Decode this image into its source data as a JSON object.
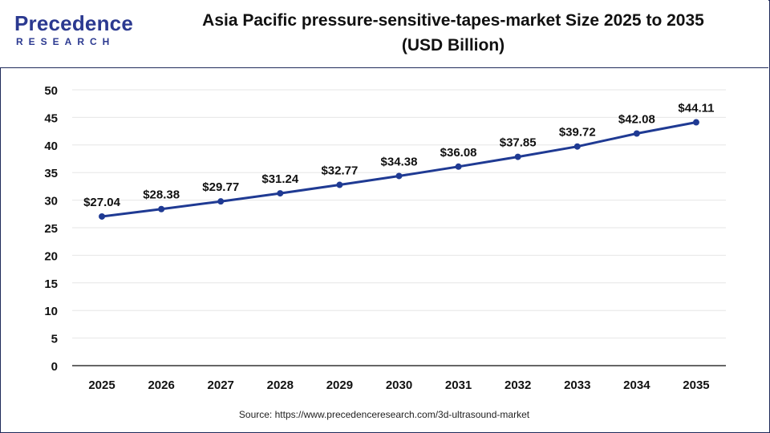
{
  "brand": {
    "name": "Precedence",
    "sub": "RESEARCH"
  },
  "header": {
    "title_line1": "Asia Pacific pressure-sensitive-tapes-market Size 2025 to 2035",
    "title_line2": "(USD Billion)"
  },
  "source": "Source: https://www.precedenceresearch.com/3d-ultrasound-market",
  "colors": {
    "line": "#1f3a93",
    "grid": "#e6e6e6",
    "border": "#1f2a5a",
    "brand": "#2b3990"
  },
  "chart_data": {
    "type": "line",
    "title": "Asia Pacific pressure-sensitive-tapes-market Size 2025 to 2035 (USD Billion)",
    "categories": [
      "2025",
      "2026",
      "2027",
      "2028",
      "2029",
      "2030",
      "2031",
      "2032",
      "2033",
      "2034",
      "2035"
    ],
    "values": [
      27.04,
      28.38,
      29.77,
      31.24,
      32.77,
      34.38,
      36.08,
      37.85,
      39.72,
      42.08,
      44.11
    ],
    "data_labels": [
      "$27.04",
      "$28.38",
      "$29.77",
      "$31.24",
      "$32.77",
      "$34.38",
      "$36.08",
      "$37.85",
      "$39.72",
      "$42.08",
      "$44.11"
    ],
    "y_ticks": [
      0,
      5,
      10,
      15,
      20,
      25,
      30,
      35,
      40,
      45,
      50
    ],
    "ylim": [
      0,
      50
    ],
    "xlabel": "",
    "ylabel": "",
    "grid": true,
    "legend": "none"
  }
}
